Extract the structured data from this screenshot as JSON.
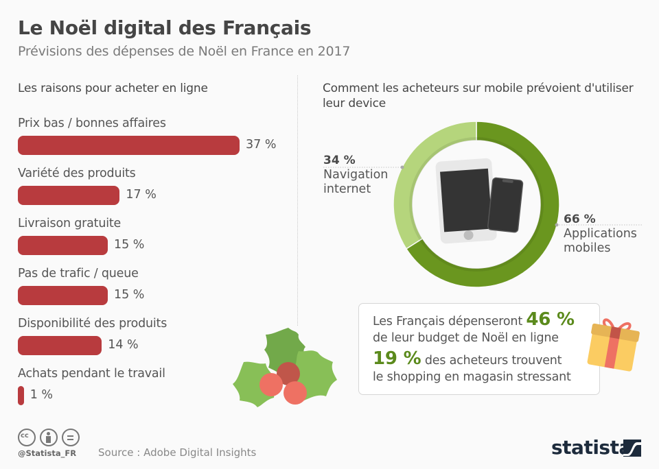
{
  "header": {
    "title": "Le Noël digital des Français",
    "subtitle": "Prévisions des dépenses de Noël en France en 2017"
  },
  "chart_data": [
    {
      "type": "bar",
      "orientation": "horizontal",
      "title": "Les raisons pour acheter en ligne",
      "categories": [
        "Prix bas / bonnes affaires",
        "Variété des produits",
        "Livraison gratuite",
        "Pas de trafic / queue",
        "Disponibilité des produits",
        "Achats pendant le travail"
      ],
      "values": [
        37,
        17,
        15,
        15,
        14,
        1
      ],
      "value_labels": [
        "37 %",
        "17 %",
        "15 %",
        "15 %",
        "14 %",
        "1 %"
      ],
      "unit": "%",
      "color": "#b83b3e",
      "xlabel": "",
      "ylabel": ""
    },
    {
      "type": "pie",
      "variant": "donut",
      "title": "Comment les acheteurs sur mobile prévoient d'utiliser leur device",
      "slices": [
        {
          "label": "Applications mobiles",
          "value": 66,
          "value_label": "66 %",
          "color": "#6a961f"
        },
        {
          "label": "Navigation internet",
          "value": 34,
          "value_label": "34 %",
          "color": "#b5d57c"
        }
      ]
    }
  ],
  "labels": {
    "nav_pct": "34 %",
    "nav_line1": "Navigation",
    "nav_line2": "internet",
    "app_pct": "66 %",
    "app_line1": "Applications",
    "app_line2": "mobiles"
  },
  "info_box": {
    "line1_text": "Les Français dépenseront ",
    "line1_highlight": "46 %",
    "line2_text": "de leur budget de Noël en ligne",
    "line3_highlight": "19 %",
    "line3_text": " des acheteurs trouvent",
    "line4_text": "le shopping en magasin stressant",
    "highlight_color": "#5b8a1c"
  },
  "footer": {
    "handle": "@Statista_FR",
    "source": "Source : Adobe Digital Insights",
    "logo": "statista",
    "icons": [
      "cc-icon",
      "by-icon",
      "nd-icon"
    ]
  }
}
